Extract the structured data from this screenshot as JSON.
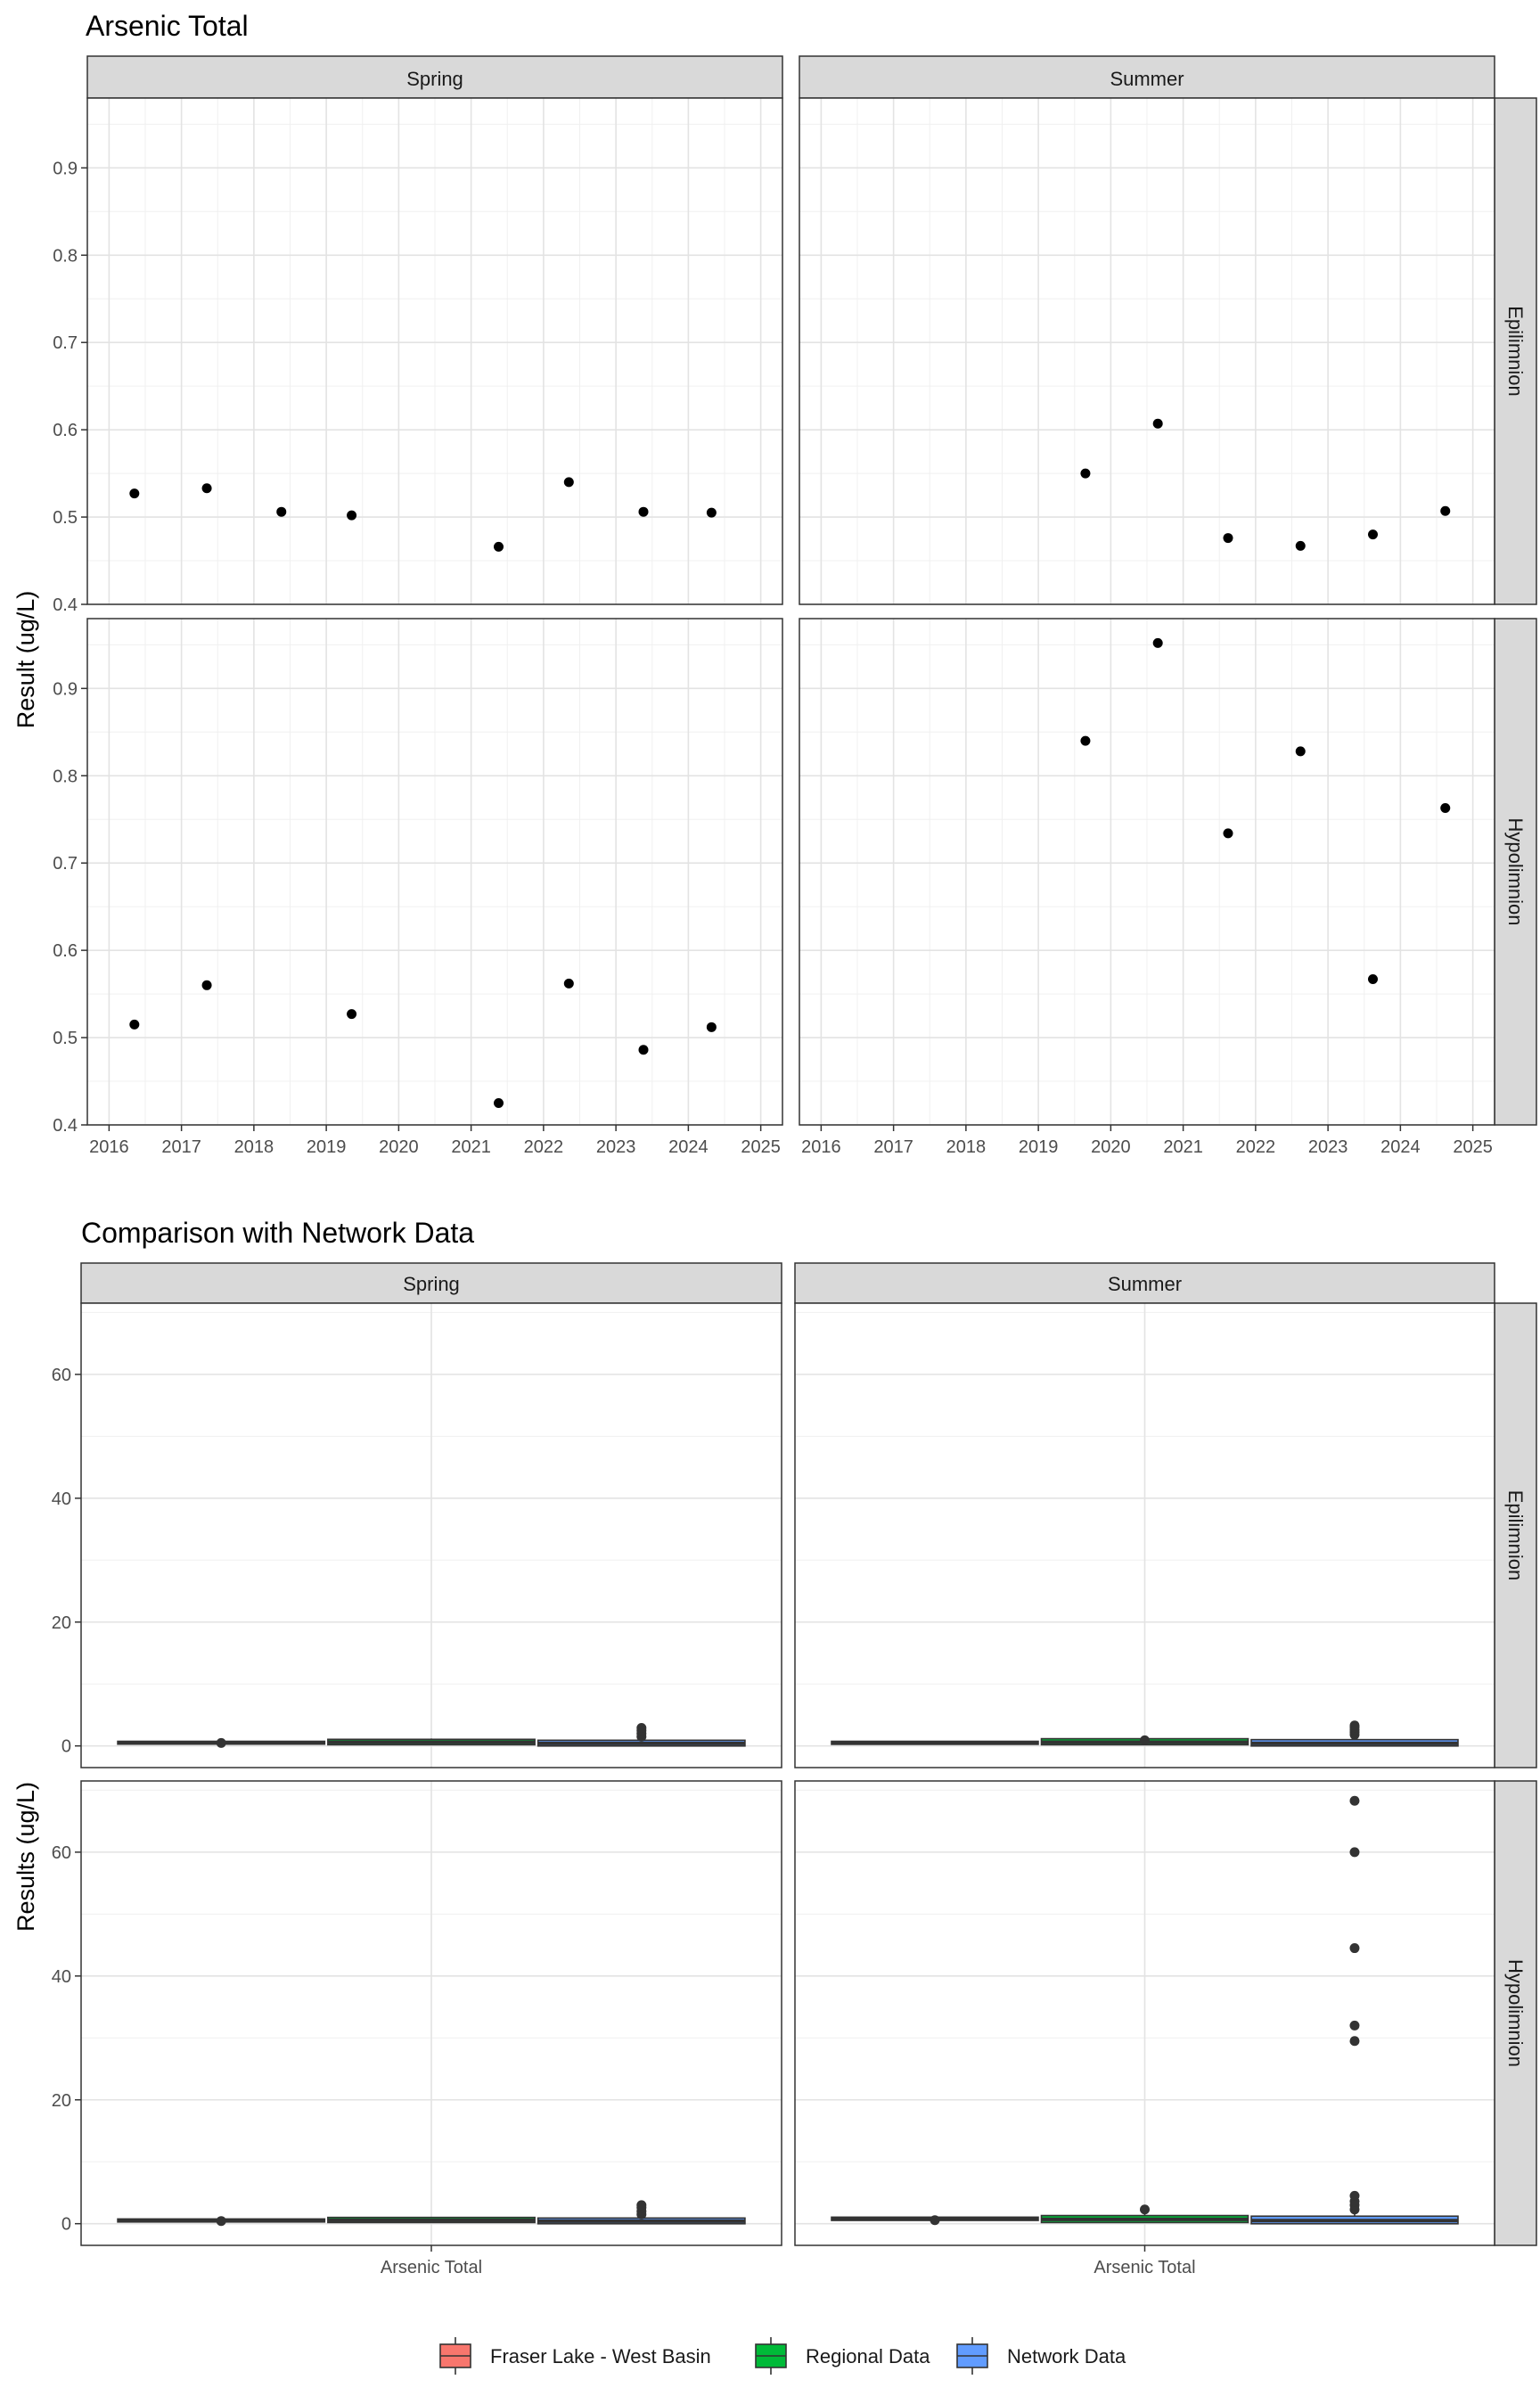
{
  "chart_data": [
    {
      "type": "scatter",
      "title": "Arsenic Total",
      "ylabel": "Result (ug/L)",
      "xlabel": "",
      "columns": [
        "Spring",
        "Summer"
      ],
      "rows": [
        "Epilimnion",
        "Hypolimnion"
      ],
      "xlim": [
        2015.7,
        2025.3
      ],
      "ylim": [
        0.4,
        0.98
      ],
      "x_ticks": [
        2016,
        2017,
        2018,
        2019,
        2020,
        2021,
        2022,
        2023,
        2024,
        2025
      ],
      "y_ticks": [
        0.4,
        0.5,
        0.6,
        0.7,
        0.8,
        0.9
      ],
      "grid": true,
      "panels": [
        {
          "column": "Spring",
          "row": "Epilimnion",
          "points": [
            {
              "x": 2016.35,
              "y": 0.527
            },
            {
              "x": 2017.35,
              "y": 0.533
            },
            {
              "x": 2018.38,
              "y": 0.506
            },
            {
              "x": 2019.35,
              "y": 0.502
            },
            {
              "x": 2021.38,
              "y": 0.466
            },
            {
              "x": 2022.35,
              "y": 0.54
            },
            {
              "x": 2023.38,
              "y": 0.506
            },
            {
              "x": 2024.32,
              "y": 0.505
            }
          ]
        },
        {
          "column": "Summer",
          "row": "Epilimnion",
          "points": [
            {
              "x": 2019.65,
              "y": 0.55
            },
            {
              "x": 2020.65,
              "y": 0.607
            },
            {
              "x": 2021.62,
              "y": 0.476
            },
            {
              "x": 2022.62,
              "y": 0.467
            },
            {
              "x": 2023.62,
              "y": 0.48
            },
            {
              "x": 2024.62,
              "y": 0.507
            }
          ]
        },
        {
          "column": "Spring",
          "row": "Hypolimnion",
          "points": [
            {
              "x": 2016.35,
              "y": 0.515
            },
            {
              "x": 2017.35,
              "y": 0.56
            },
            {
              "x": 2019.35,
              "y": 0.527
            },
            {
              "x": 2021.38,
              "y": 0.425
            },
            {
              "x": 2022.35,
              "y": 0.562
            },
            {
              "x": 2023.38,
              "y": 0.486
            },
            {
              "x": 2024.32,
              "y": 0.512
            }
          ]
        },
        {
          "column": "Summer",
          "row": "Hypolimnion",
          "points": [
            {
              "x": 2019.65,
              "y": 0.84
            },
            {
              "x": 2020.65,
              "y": 0.952
            },
            {
              "x": 2021.62,
              "y": 0.734
            },
            {
              "x": 2022.62,
              "y": 0.828
            },
            {
              "x": 2023.62,
              "y": 0.567
            },
            {
              "x": 2024.62,
              "y": 0.763
            }
          ]
        }
      ]
    },
    {
      "type": "box",
      "title": "Comparison with Network Data",
      "ylabel": "Results (ug/L)",
      "xlabel": "",
      "category": "Arsenic Total",
      "columns": [
        "Spring",
        "Summer"
      ],
      "rows": [
        "Epilimnion",
        "Hypolimnion"
      ],
      "ylim": [
        -3.5,
        71.5
      ],
      "y_ticks": [
        0,
        20,
        40,
        60
      ],
      "grid": true,
      "series_names": [
        "Fraser Lake - West Basin",
        "Regional Data",
        "Network Data"
      ],
      "series_colors": [
        "#F8766D",
        "#00BA38",
        "#619CFF"
      ],
      "legend_position": "bottom",
      "panels": [
        {
          "column": "Spring",
          "row": "Epilimnion",
          "boxes": [
            {
              "series": "Fraser Lake - West Basin",
              "median": 0.51,
              "q1": 0.5,
              "q3": 0.53,
              "low": 0.47,
              "high": 0.54,
              "outliers": [
                0.47
              ]
            },
            {
              "series": "Regional Data",
              "median": 0.6,
              "q1": 0.4,
              "q3": 0.85,
              "low": 0.1,
              "high": 1.2,
              "outliers": []
            },
            {
              "series": "Network Data",
              "median": 0.4,
              "q1": 0.2,
              "q3": 0.7,
              "low": 0.05,
              "high": 1.2,
              "outliers": [
                1.5,
                2.0,
                2.5,
                2.9
              ]
            }
          ]
        },
        {
          "column": "Summer",
          "row": "Epilimnion",
          "boxes": [
            {
              "series": "Fraser Lake - West Basin",
              "median": 0.49,
              "q1": 0.47,
              "q3": 0.53,
              "low": 0.46,
              "high": 0.61,
              "outliers": []
            },
            {
              "series": "Regional Data",
              "median": 0.6,
              "q1": 0.4,
              "q3": 0.95,
              "low": 0.1,
              "high": 1.4,
              "outliers": [
                0.9
              ]
            },
            {
              "series": "Network Data",
              "median": 0.4,
              "q1": 0.2,
              "q3": 0.8,
              "low": 0.05,
              "high": 1.4,
              "outliers": [
                1.8,
                2.2,
                2.6,
                3.0,
                3.3
              ]
            }
          ]
        },
        {
          "column": "Spring",
          "row": "Hypolimnion",
          "boxes": [
            {
              "series": "Fraser Lake - West Basin",
              "median": 0.51,
              "q1": 0.49,
              "q3": 0.55,
              "low": 0.43,
              "high": 0.56,
              "outliers": [
                0.43
              ]
            },
            {
              "series": "Regional Data",
              "median": 0.55,
              "q1": 0.4,
              "q3": 0.8,
              "low": 0.1,
              "high": 1.0,
              "outliers": []
            },
            {
              "series": "Network Data",
              "median": 0.4,
              "q1": 0.2,
              "q3": 0.7,
              "low": 0.05,
              "high": 1.2,
              "outliers": [
                1.5,
                2.0,
                2.6,
                3.0
              ]
            }
          ]
        },
        {
          "column": "Summer",
          "row": "Hypolimnion",
          "boxes": [
            {
              "series": "Fraser Lake - West Basin",
              "median": 0.8,
              "q1": 0.74,
              "q3": 0.84,
              "low": 0.57,
              "high": 0.95,
              "outliers": [
                0.57
              ]
            },
            {
              "series": "Regional Data",
              "median": 0.7,
              "q1": 0.4,
              "q3": 1.1,
              "low": 0.1,
              "high": 1.6,
              "outliers": [
                2.3
              ]
            },
            {
              "series": "Network Data",
              "median": 0.5,
              "q1": 0.2,
              "q3": 1.0,
              "low": 0.05,
              "high": 1.8,
              "outliers": [
                2.3,
                3.0,
                3.6,
                4.5,
                29.5,
                32,
                44.5,
                60,
                68.3
              ]
            }
          ]
        }
      ]
    }
  ]
}
